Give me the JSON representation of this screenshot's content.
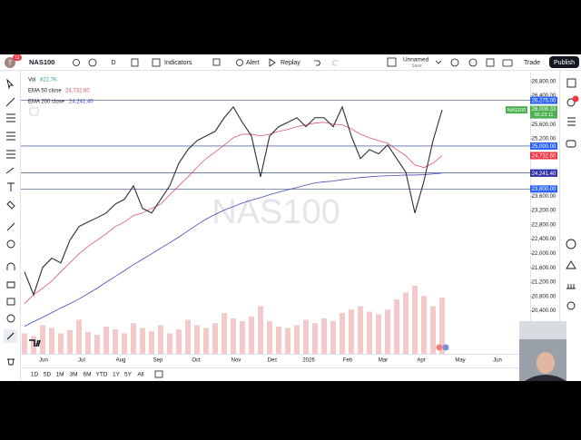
{
  "toolbar": {
    "avatar": "T",
    "notifications": "11",
    "symbol": "NAS100",
    "interval": "D",
    "buttons": [
      "Indicators",
      "Alert",
      "Replay"
    ],
    "layout_name": "Unnamed",
    "layout_status": "Save",
    "trade": "Trade",
    "publish": "Publish"
  },
  "chart_data": {
    "type": "line",
    "watermark": "NAS100",
    "legend": {
      "vol_label": "Vol",
      "vol_value": "822.7K",
      "ema50_value": "24,732.60",
      "ema200_value": "24,241.40"
    },
    "series": [
      {
        "name": "NAS100",
        "color": "#2a2e39",
        "values": [
          21490,
          20850,
          21610,
          21870,
          21740,
          22370,
          22750,
          22880,
          23000,
          23130,
          23380,
          23510,
          23890,
          23260,
          23130,
          23510,
          23890,
          24520,
          24900,
          25150,
          25280,
          25410,
          25790,
          26090,
          25660,
          25280,
          24140,
          25280,
          25540,
          25660,
          25790,
          25540,
          25790,
          25790,
          25540,
          26090,
          25280,
          24650,
          24900,
          24780,
          25030,
          24650,
          24270,
          23130,
          24020,
          25150,
          26008.33
        ]
      },
      {
        "name": "EMA 50 close",
        "color": "#e0566d",
        "values": [
          20600,
          20850,
          21030,
          21230,
          21490,
          21740,
          21990,
          22200,
          22370,
          22550,
          22750,
          22880,
          23060,
          23130,
          23260,
          23380,
          23640,
          23890,
          24140,
          24400,
          24650,
          24830,
          25030,
          25230,
          25330,
          25330,
          25280,
          25330,
          25410,
          25460,
          25540,
          25590,
          25640,
          25660,
          25610,
          25590,
          25480,
          25330,
          25230,
          25150,
          25080,
          24900,
          24730,
          24470,
          24400,
          24520,
          24732.6
        ]
      },
      {
        "name": "EMA 200 close",
        "color": "#4a4ab5",
        "values": [
          19970,
          20100,
          20220,
          20350,
          20480,
          20600,
          20730,
          20880,
          21030,
          21200,
          21360,
          21520,
          21690,
          21840,
          21990,
          22150,
          22300,
          22460,
          22630,
          22800,
          22960,
          23090,
          23210,
          23310,
          23410,
          23490,
          23560,
          23640,
          23710,
          23780,
          23840,
          23910,
          23970,
          24000,
          24020,
          24060,
          24090,
          24120,
          24140,
          24160,
          24170,
          24180,
          24190,
          24190,
          24200,
          24220,
          24241.4
        ]
      }
    ],
    "volume": {
      "color": "#f3c9c9",
      "values": [
        300,
        260,
        420,
        380,
        300,
        350,
        500,
        320,
        280,
        400,
        360,
        300,
        450,
        380,
        330,
        420,
        300,
        360,
        500,
        420,
        380,
        450,
        600,
        520,
        480,
        550,
        700,
        480,
        400,
        380,
        420,
        500,
        450,
        520,
        480,
        600,
        650,
        700,
        620,
        580,
        650,
        800,
        900,
        1000,
        850,
        700,
        822.7
      ]
    },
    "ylim": [
      19200,
      27050
    ],
    "yticks": [
      {
        "value": 26800,
        "label": "26,800.00"
      },
      {
        "value": 26400,
        "label": "26,400.00"
      },
      {
        "value": 25600,
        "label": "25,600.00"
      },
      {
        "value": 25200,
        "label": "25,200.00"
      },
      {
        "value": 23600,
        "label": "23,600.00"
      },
      {
        "value": 23200,
        "label": "23,200.00"
      },
      {
        "value": 22800,
        "label": "22,800.00"
      },
      {
        "value": 22400,
        "label": "22,400.00"
      },
      {
        "value": 22000,
        "label": "22,000.00"
      },
      {
        "value": 21600,
        "label": "21,600.00"
      },
      {
        "value": 21200,
        "label": "21,200.00"
      },
      {
        "value": 20800,
        "label": "20,800.00"
      },
      {
        "value": 20400,
        "label": "20,400.00"
      }
    ],
    "hlines": [
      26275,
      25000,
      24250,
      23800
    ],
    "price_tags": [
      {
        "value": 26275,
        "label": "26,275.00",
        "color": "#2962ff"
      },
      {
        "value": 25000,
        "label": "25,000.00",
        "color": "#2962ff"
      },
      {
        "value": 24732.6,
        "label": "24,732.60",
        "color": "#f23645"
      },
      {
        "value": 24250,
        "label": "24,250.00",
        "color": "#2962ff"
      },
      {
        "value": 24241.4,
        "label": "24,241.40",
        "color": "#3535a8"
      },
      {
        "value": 23800,
        "label": "23,800.00",
        "color": "#2962ff"
      }
    ],
    "last_price": {
      "value": 26008.33,
      "label": "26,008.33",
      "countdown": "06:23:11",
      "color": "#4caf50"
    },
    "xtick_labels": [
      "Jun",
      "Jul",
      "Aug",
      "Sep",
      "Oct",
      "Nov",
      "Dec",
      "2026",
      "Feb",
      "Mar",
      "Apr",
      "May",
      "Jun"
    ],
    "ranges": [
      "1D",
      "5D",
      "1M",
      "3M",
      "6M",
      "YTD",
      "1Y",
      "5Y",
      "All"
    ]
  }
}
